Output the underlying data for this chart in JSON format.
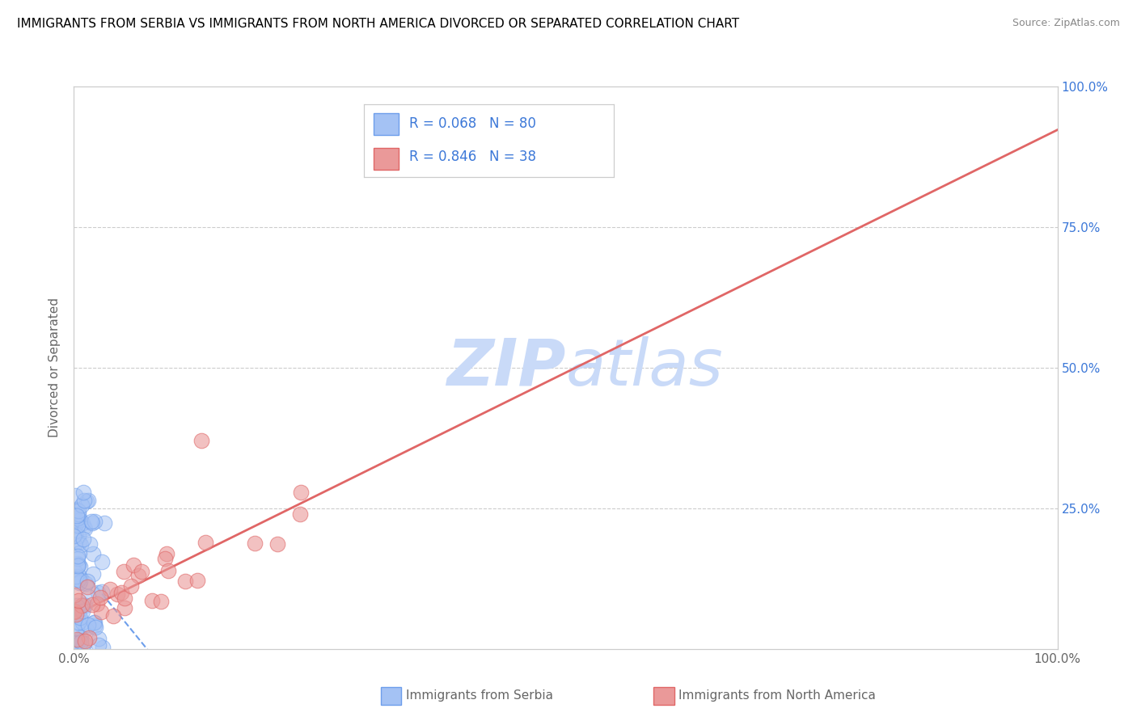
{
  "title": "IMMIGRANTS FROM SERBIA VS IMMIGRANTS FROM NORTH AMERICA DIVORCED OR SEPARATED CORRELATION CHART",
  "source": "Source: ZipAtlas.com",
  "ylabel": "Divorced or Separated",
  "blue_label": "Immigrants from Serbia",
  "pink_label": "Immigrants from North America",
  "blue_R": 0.068,
  "blue_N": 80,
  "pink_R": 0.846,
  "pink_N": 38,
  "xlim": [
    0.0,
    1.0
  ],
  "ylim": [
    0.0,
    1.0
  ],
  "background_color": "#ffffff",
  "grid_color": "#cccccc",
  "blue_fill_color": "#a4c2f4",
  "blue_edge_color": "#6d9eeb",
  "pink_fill_color": "#ea9999",
  "pink_edge_color": "#e06666",
  "blue_line_color": "#6d9eeb",
  "pink_line_color": "#e06666",
  "right_tick_color": "#3c78d8",
  "legend_text_color": "#3c78d8",
  "watermark_color": "#c9daf8",
  "title_color": "#000000",
  "source_color": "#888888",
  "axis_label_color": "#666666",
  "tick_label_color": "#666666"
}
